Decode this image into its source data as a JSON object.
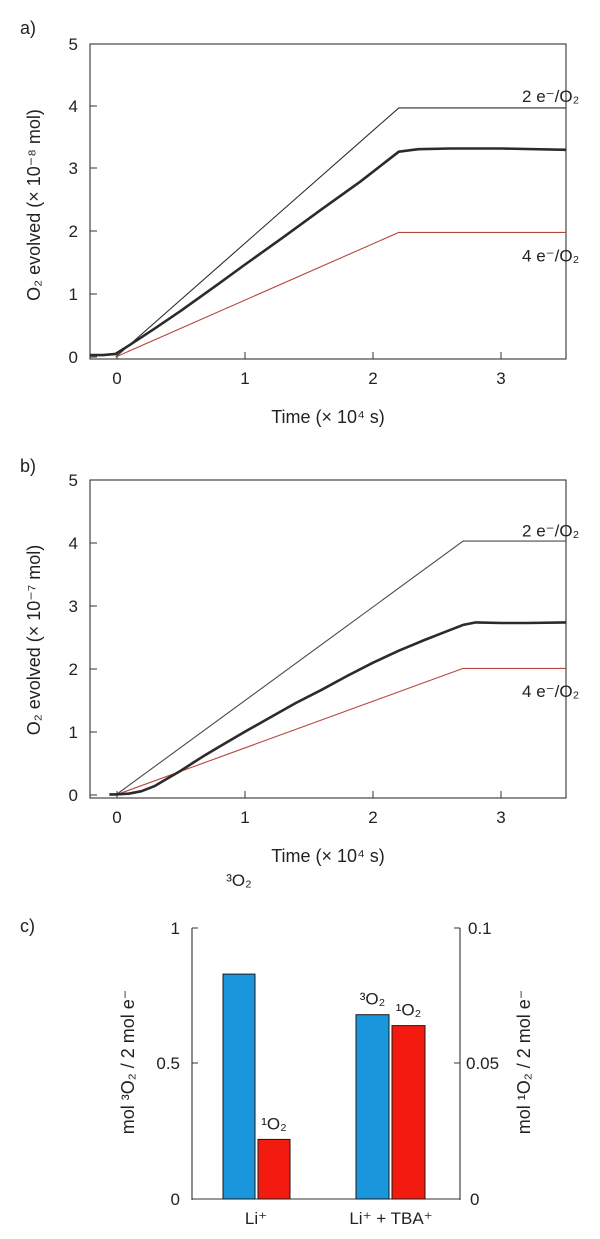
{
  "chart_data": [
    {
      "panel_label": "a)",
      "type": "line",
      "xlabel": "Time (× 10⁴ s)",
      "ylabel": "O₂ evolved (× 10⁻⁸ mol)",
      "xlim": [
        -0.2,
        3.5
      ],
      "ylim": [
        0,
        5
      ],
      "xticks": [
        0,
        1,
        2,
        3
      ],
      "yticks": [
        0,
        1,
        2,
        3,
        4,
        5
      ],
      "series": [
        {
          "name": "2 e⁻/O₂",
          "color": "#2b2b2b",
          "width": 1.1,
          "x": [
            0,
            2.2,
            3.5
          ],
          "y": [
            0,
            3.98,
            3.98
          ]
        },
        {
          "name": "4 e⁻/O₂",
          "color": "#b5463c",
          "width": 1.1,
          "x": [
            0,
            2.2,
            3.5
          ],
          "y": [
            0,
            1.99,
            1.99
          ]
        },
        {
          "name": "",
          "color": "#2b2b2b",
          "width": 2.6,
          "x": [
            -0.2,
            -0.1,
            0,
            0.1,
            0.3,
            0.5,
            0.8,
            1.0,
            1.3,
            1.6,
            1.9,
            2.1,
            2.2,
            2.35,
            2.6,
            3.0,
            3.5
          ],
          "y": [
            0.03,
            0.03,
            0.05,
            0.18,
            0.45,
            0.73,
            1.17,
            1.47,
            1.91,
            2.36,
            2.8,
            3.12,
            3.28,
            3.32,
            3.33,
            3.33,
            3.31
          ]
        }
      ],
      "annotations": [
        {
          "text": "2 e⁻/O₂",
          "x": 3.38,
          "y": 4.17
        },
        {
          "text": "4 e⁻/O₂",
          "x": 3.38,
          "y": 1.62
        }
      ]
    },
    {
      "panel_label": "b)",
      "type": "line",
      "xlabel": "Time (× 10⁴ s)",
      "ylabel": "O₂ evolved (× 10⁻⁷ mol)",
      "xlim": [
        -0.2,
        3.5
      ],
      "ylim": [
        0,
        5
      ],
      "xticks": [
        0,
        1,
        2,
        3
      ],
      "yticks": [
        0,
        1,
        2,
        3,
        4,
        5
      ],
      "series": [
        {
          "name": "2 e⁻/O₂",
          "color": "#4a4a4a",
          "width": 1.1,
          "x": [
            0,
            2.7,
            3.5
          ],
          "y": [
            0,
            4.03,
            4.03
          ]
        },
        {
          "name": "4 e⁻/O₂",
          "color": "#b5463c",
          "width": 1.1,
          "x": [
            0,
            2.7,
            3.5
          ],
          "y": [
            0,
            2.01,
            2.01
          ]
        },
        {
          "name": "",
          "color": "#2b2b2b",
          "width": 2.6,
          "x": [
            -0.05,
            0,
            0.1,
            0.2,
            0.3,
            0.4,
            0.5,
            0.6,
            0.7,
            0.8,
            1.0,
            1.2,
            1.4,
            1.6,
            1.8,
            2.0,
            2.2,
            2.4,
            2.6,
            2.7,
            2.8,
            3.0,
            3.2,
            3.5
          ],
          "y": [
            0.01,
            0.01,
            0.02,
            0.06,
            0.14,
            0.26,
            0.38,
            0.51,
            0.64,
            0.76,
            1.0,
            1.23,
            1.46,
            1.67,
            1.89,
            2.1,
            2.29,
            2.46,
            2.62,
            2.7,
            2.74,
            2.73,
            2.73,
            2.74
          ]
        }
      ],
      "annotations": [
        {
          "text": "2 e⁻/O₂",
          "x": 3.38,
          "y": 4.2
        },
        {
          "text": "4 e⁻/O₂",
          "x": 3.38,
          "y": 1.65
        }
      ]
    },
    {
      "panel_label": "c)",
      "type": "bar",
      "categories": [
        "Li⁺",
        "Li⁺ + TBA⁺"
      ],
      "ylabel_left": "mol ³O₂ / 2 mol e⁻",
      "ylabel_right": "mol ¹O₂ / 2 mol e⁻",
      "ylim_left": [
        0,
        1
      ],
      "ylim_right": [
        0,
        0.1
      ],
      "yticks_left": [
        "0",
        "0.5",
        "1"
      ],
      "yticks_right": [
        "0",
        "0.05",
        "0.1"
      ],
      "series": [
        {
          "name": "³O₂",
          "axis": "left",
          "color": "#1a96dc",
          "values": [
            0.83,
            0.68
          ]
        },
        {
          "name": "¹O₂",
          "axis": "right",
          "color": "#f31b10",
          "values": [
            0.022,
            0.064
          ]
        }
      ]
    }
  ]
}
